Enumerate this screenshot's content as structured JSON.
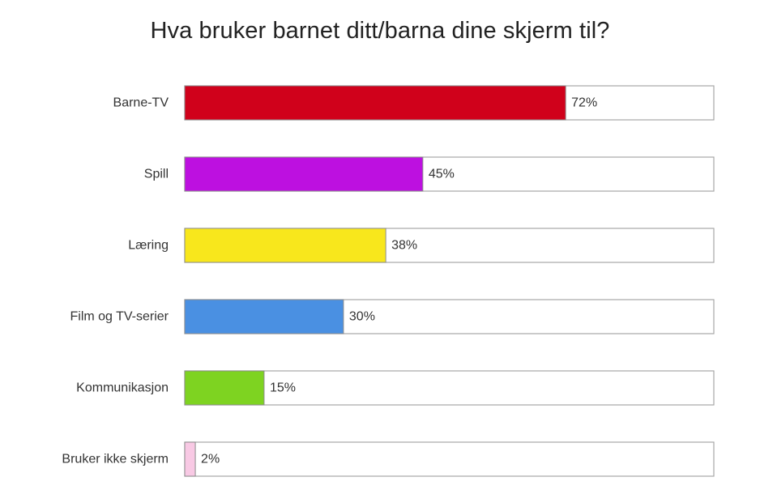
{
  "chart_data": {
    "type": "bar",
    "orientation": "horizontal",
    "title": "Hva bruker barnet ditt/barna dine skjerm til?",
    "xlim": [
      0,
      100
    ],
    "value_suffix": "%",
    "grid": false,
    "legend": "none",
    "categories": [
      "Barne-TV",
      "Spill",
      "Læring",
      "Film og TV-serier",
      "Kommunikasjon",
      "Bruker ikke skjerm"
    ],
    "values": [
      72,
      45,
      38,
      30,
      15,
      2
    ],
    "value_labels": [
      "72%",
      "45%",
      "38%",
      "30%",
      "15%",
      "2%"
    ],
    "colors": [
      "#d0011b",
      "#bd10e0",
      "#f8e71c",
      "#4a90e2",
      "#7ed321",
      "#f8c9e4"
    ]
  }
}
